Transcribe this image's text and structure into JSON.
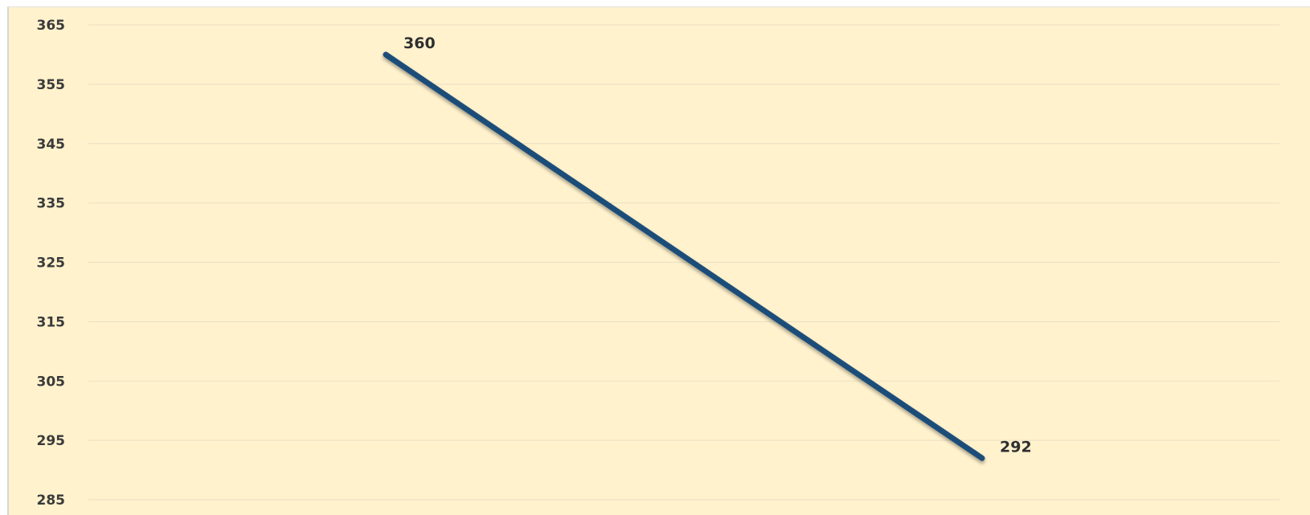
{
  "chart_data": {
    "type": "line",
    "title": "",
    "xlabel": "",
    "ylabel": "",
    "x": [
      "",
      ""
    ],
    "ylim": [
      285,
      365
    ],
    "yticks": [
      365,
      355,
      345,
      335,
      325,
      315,
      305,
      295,
      285
    ],
    "grid": true,
    "legend": "none",
    "series": [
      {
        "color": "#1f4e79",
        "values": [
          360,
          292
        ],
        "data_labels": [
          "360",
          "292"
        ]
      }
    ]
  },
  "colors": {
    "plot_background": "#fff2cd",
    "gridline": "#e9dfc3",
    "line": "#1f4e79"
  }
}
